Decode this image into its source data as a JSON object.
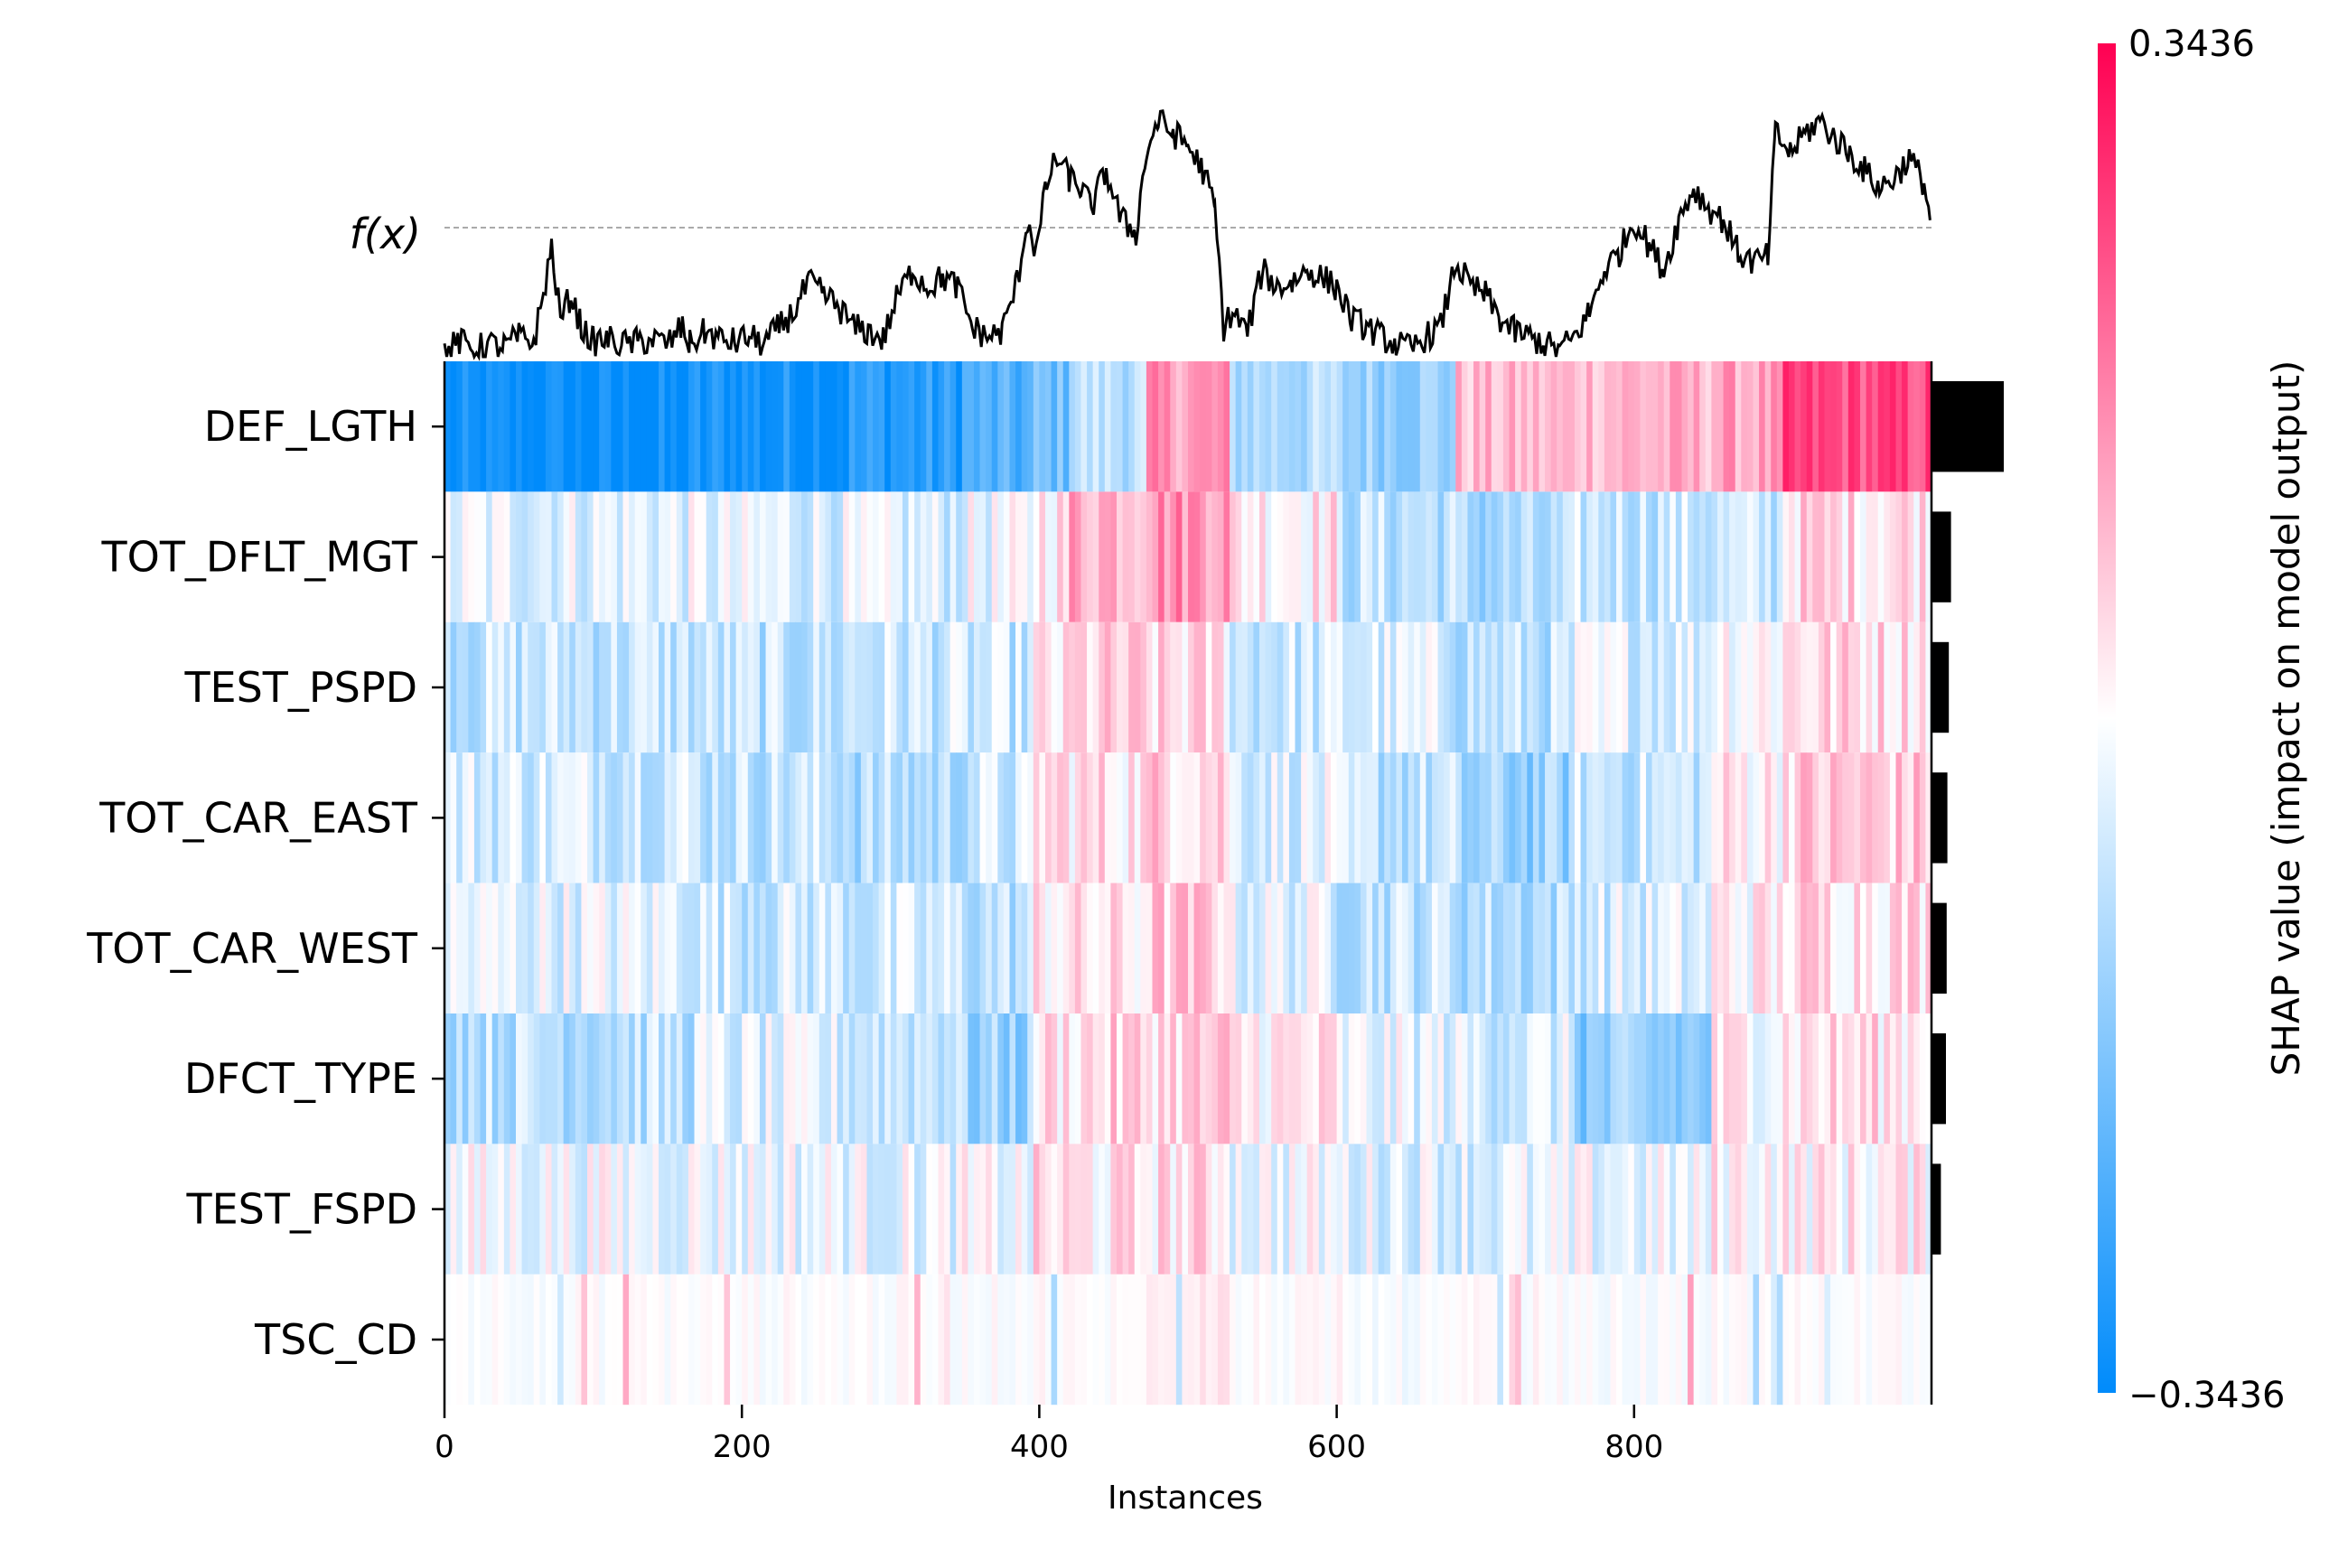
{
  "chart_data": {
    "type": "heatmap",
    "xlabel": "Instances",
    "ylabel": "",
    "xlim": [
      0,
      1000
    ],
    "x_ticks": [
      "0",
      "200",
      "400",
      "600",
      "800"
    ],
    "x_tick_values": [
      0,
      200,
      400,
      600,
      800
    ],
    "fx_label": "f(x)",
    "features": [
      "DEF_LGTH",
      "TOT_DFLT_MGT",
      "TEST_PSPD",
      "TOT_CAR_EAST",
      "TOT_CAR_WEST",
      "DFCT_TYPE",
      "TEST_FSPD",
      "TSC_CD"
    ],
    "mean_abs_shap_relative": [
      1.0,
      0.27,
      0.24,
      0.22,
      0.21,
      0.2,
      0.13,
      0.0
    ],
    "colorbar": {
      "label": "SHAP value (impact on model output)",
      "max_label": "0.3436",
      "min_label": "−0.3436",
      "max": 0.3436,
      "min": -0.3436,
      "low_color": "#008bfb",
      "mid_color": "#ffffff",
      "high_color": "#ff0052"
    },
    "segments": [
      {
        "x0": 0,
        "x1": 165,
        "v": [
          -1.0,
          -0.1,
          -0.22,
          -0.15,
          -0.1,
          -0.25,
          -0.05,
          0.0
        ]
      },
      {
        "x0": 165,
        "x1": 270,
        "v": [
          -0.92,
          -0.12,
          -0.25,
          -0.22,
          -0.18,
          -0.15,
          -0.06,
          0.0
        ]
      },
      {
        "x0": 270,
        "x1": 345,
        "v": [
          -0.85,
          -0.15,
          -0.2,
          -0.3,
          -0.2,
          -0.18,
          -0.08,
          0.0
        ]
      },
      {
        "x0": 345,
        "x1": 395,
        "v": [
          -0.7,
          -0.08,
          -0.22,
          -0.2,
          -0.25,
          -0.4,
          -0.05,
          0.0
        ]
      },
      {
        "x0": 395,
        "x1": 420,
        "v": [
          -0.55,
          0.12,
          0.05,
          0.15,
          0.1,
          0.12,
          0.1,
          0.02
        ]
      },
      {
        "x0": 420,
        "x1": 470,
        "v": [
          -0.25,
          0.35,
          0.15,
          0.12,
          0.08,
          0.15,
          0.08,
          0.0
        ]
      },
      {
        "x0": 470,
        "x1": 525,
        "v": [
          0.4,
          0.45,
          0.12,
          0.2,
          0.2,
          0.18,
          0.12,
          0.1
        ]
      },
      {
        "x0": 525,
        "x1": 600,
        "v": [
          -0.3,
          0.1,
          -0.2,
          -0.12,
          -0.1,
          0.08,
          -0.05,
          0.0
        ]
      },
      {
        "x0": 600,
        "x1": 680,
        "v": [
          -0.38,
          -0.25,
          -0.15,
          -0.25,
          -0.22,
          -0.1,
          -0.1,
          -0.03
        ]
      },
      {
        "x0": 680,
        "x1": 760,
        "v": [
          0.25,
          -0.35,
          -0.25,
          -0.4,
          -0.28,
          -0.15,
          -0.12,
          0.0
        ]
      },
      {
        "x0": 760,
        "x1": 850,
        "v": [
          0.3,
          -0.2,
          -0.12,
          -0.2,
          -0.15,
          -0.45,
          -0.08,
          -0.02
        ]
      },
      {
        "x0": 850,
        "x1": 900,
        "v": [
          0.35,
          -0.22,
          0.05,
          0.08,
          0.05,
          0.05,
          0.05,
          0.0
        ]
      },
      {
        "x0": 900,
        "x1": 1000,
        "v": [
          0.7,
          0.15,
          0.15,
          0.2,
          0.15,
          0.12,
          0.05,
          0.0
        ]
      }
    ],
    "fx_y_range": [
      0,
      1
    ],
    "fx_baseline": 0.52,
    "fx_points": [
      [
        0,
        0.02
      ],
      [
        10,
        0.06
      ],
      [
        20,
        0.03
      ],
      [
        30,
        0.05
      ],
      [
        40,
        0.04
      ],
      [
        50,
        0.08
      ],
      [
        60,
        0.06
      ],
      [
        65,
        0.2
      ],
      [
        72,
        0.44
      ],
      [
        78,
        0.15
      ],
      [
        85,
        0.25
      ],
      [
        92,
        0.12
      ],
      [
        100,
        0.06
      ],
      [
        110,
        0.07
      ],
      [
        120,
        0.05
      ],
      [
        130,
        0.06
      ],
      [
        140,
        0.07
      ],
      [
        150,
        0.05
      ],
      [
        160,
        0.12
      ],
      [
        165,
        0.05
      ],
      [
        175,
        0.1
      ],
      [
        185,
        0.07
      ],
      [
        195,
        0.06
      ],
      [
        205,
        0.08
      ],
      [
        215,
        0.05
      ],
      [
        225,
        0.12
      ],
      [
        235,
        0.18
      ],
      [
        245,
        0.3
      ],
      [
        255,
        0.25
      ],
      [
        265,
        0.2
      ],
      [
        275,
        0.12
      ],
      [
        285,
        0.1
      ],
      [
        295,
        0.07
      ],
      [
        305,
        0.25
      ],
      [
        315,
        0.35
      ],
      [
        325,
        0.28
      ],
      [
        335,
        0.32
      ],
      [
        345,
        0.28
      ],
      [
        355,
        0.12
      ],
      [
        365,
        0.08
      ],
      [
        375,
        0.1
      ],
      [
        385,
        0.3
      ],
      [
        392,
        0.55
      ],
      [
        398,
        0.42
      ],
      [
        405,
        0.7
      ],
      [
        412,
        0.8
      ],
      [
        420,
        0.72
      ],
      [
        428,
        0.68
      ],
      [
        435,
        0.6
      ],
      [
        445,
        0.75
      ],
      [
        455,
        0.55
      ],
      [
        465,
        0.5
      ],
      [
        472,
        0.82
      ],
      [
        480,
        0.95
      ],
      [
        490,
        0.9
      ],
      [
        500,
        0.85
      ],
      [
        510,
        0.75
      ],
      [
        518,
        0.6
      ],
      [
        524,
        0.12
      ],
      [
        530,
        0.18
      ],
      [
        540,
        0.1
      ],
      [
        550,
        0.35
      ],
      [
        560,
        0.28
      ],
      [
        570,
        0.3
      ],
      [
        580,
        0.35
      ],
      [
        590,
        0.32
      ],
      [
        600,
        0.28
      ],
      [
        610,
        0.15
      ],
      [
        620,
        0.12
      ],
      [
        630,
        0.08
      ],
      [
        640,
        0.05
      ],
      [
        650,
        0.03
      ],
      [
        660,
        0.08
      ],
      [
        670,
        0.12
      ],
      [
        680,
        0.38
      ],
      [
        690,
        0.28
      ],
      [
        700,
        0.25
      ],
      [
        710,
        0.15
      ],
      [
        720,
        0.1
      ],
      [
        730,
        0.08
      ],
      [
        740,
        0.05
      ],
      [
        750,
        0.03
      ],
      [
        760,
        0.08
      ],
      [
        770,
        0.18
      ],
      [
        780,
        0.35
      ],
      [
        790,
        0.42
      ],
      [
        800,
        0.55
      ],
      [
        810,
        0.45
      ],
      [
        820,
        0.35
      ],
      [
        830,
        0.55
      ],
      [
        840,
        0.68
      ],
      [
        850,
        0.6
      ],
      [
        860,
        0.55
      ],
      [
        870,
        0.42
      ],
      [
        880,
        0.38
      ],
      [
        890,
        0.4
      ],
      [
        895,
        0.9
      ],
      [
        905,
        0.82
      ],
      [
        915,
        0.9
      ],
      [
        925,
        0.95
      ],
      [
        935,
        0.88
      ],
      [
        945,
        0.82
      ],
      [
        955,
        0.75
      ],
      [
        965,
        0.68
      ],
      [
        975,
        0.72
      ],
      [
        985,
        0.8
      ],
      [
        995,
        0.7
      ],
      [
        999,
        0.55
      ]
    ]
  }
}
